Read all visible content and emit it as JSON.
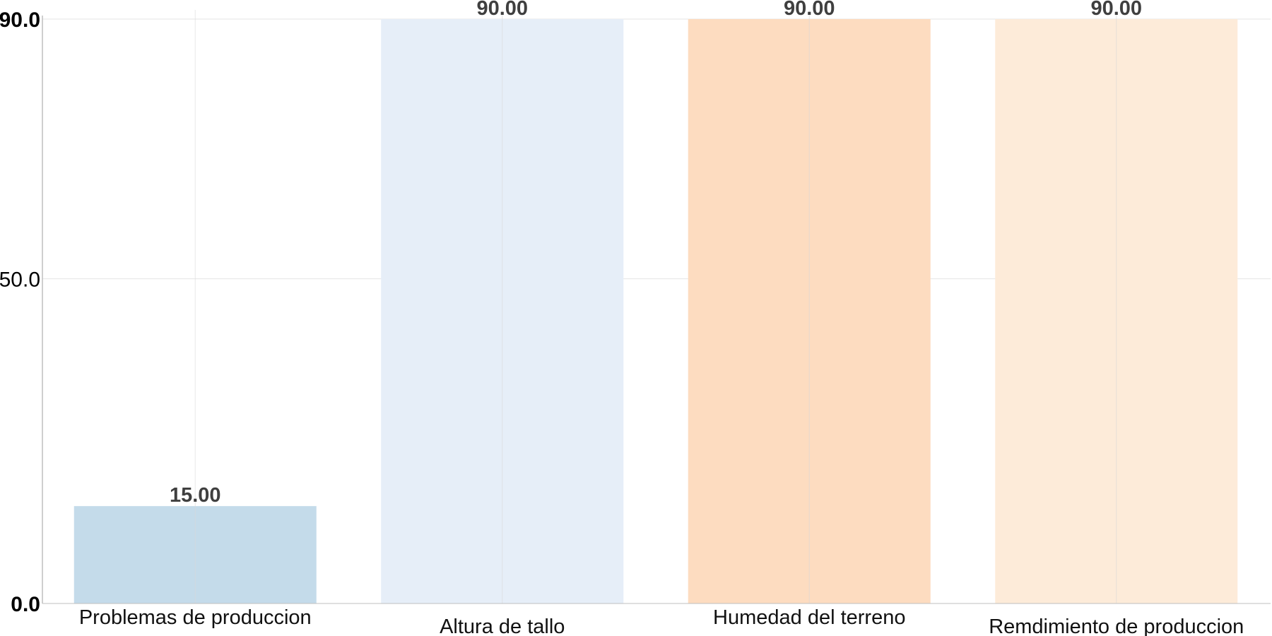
{
  "chart_data": {
    "type": "bar",
    "title": "",
    "xlabel": "",
    "ylabel": "",
    "categories": [
      "Problemas de produccion",
      "Altura de tallo",
      "Humedad del terreno",
      "Remdimiento de produccion"
    ],
    "values": [
      15,
      90,
      90,
      90
    ],
    "value_labels": [
      "15.00",
      "90.00",
      "90.00",
      "90.00"
    ],
    "colors": [
      "#c4dbea",
      "#e6eef8",
      "#fddcc0",
      "#fdebd9"
    ],
    "ylim": [
      0,
      90
    ],
    "y_ticks": [
      {
        "value": 0,
        "label": "0.0",
        "bold": true
      },
      {
        "value": 50,
        "label": "50.0",
        "bold": false
      },
      {
        "value": 90,
        "label": "90.0",
        "bold": true
      }
    ],
    "grid": true,
    "legend": "none",
    "gridline_color": "#e6e6e6",
    "axis_color": "#bfbfbf"
  }
}
